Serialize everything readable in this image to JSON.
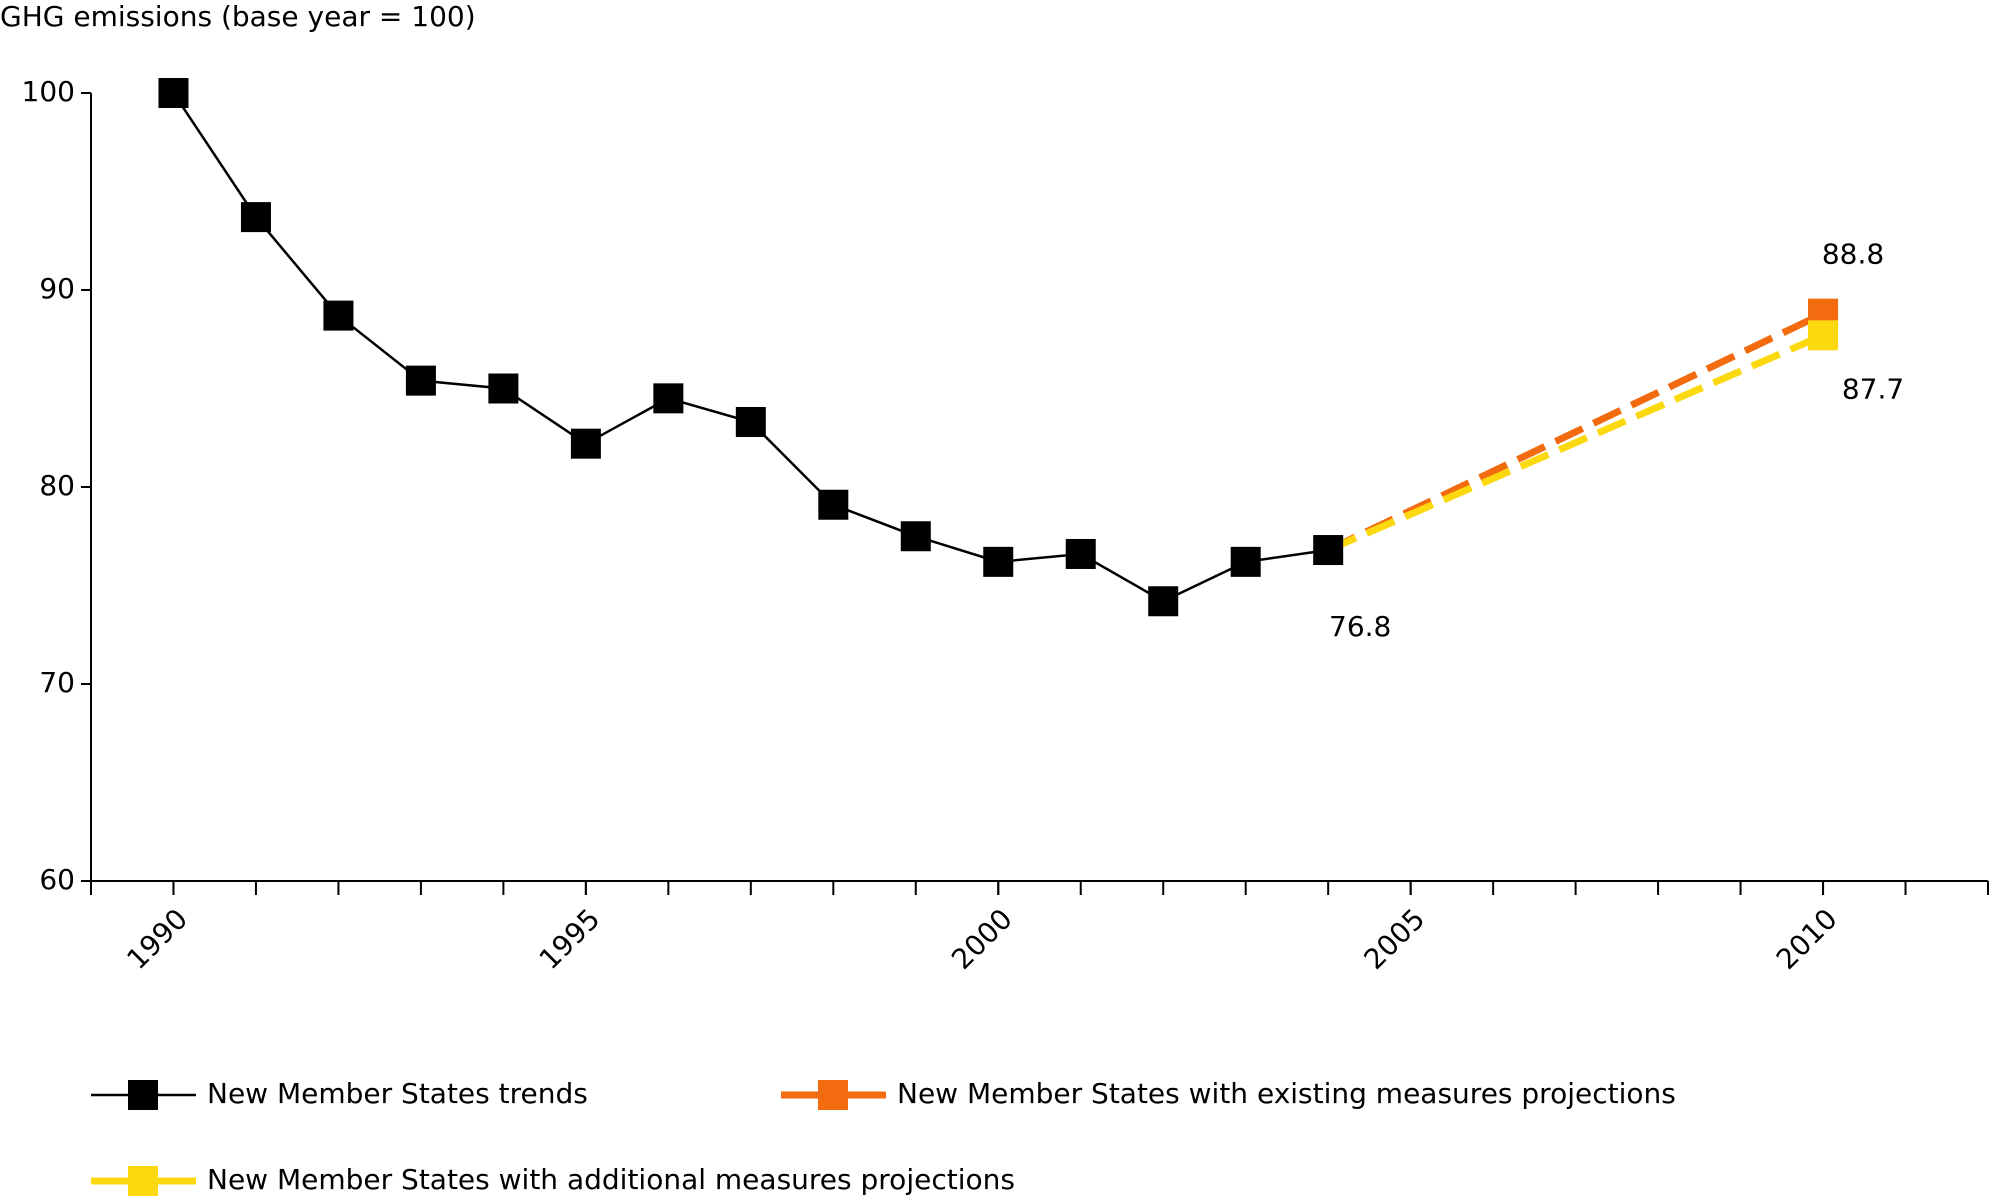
{
  "chart_data": {
    "type": "line",
    "ylabel": "GHG emissions (base year = 100)",
    "xlim": [
      1989,
      2012
    ],
    "xticks": [
      1990,
      1995,
      2000,
      2005,
      2010
    ],
    "ylim": [
      60,
      100
    ],
    "yticks": [
      60,
      70,
      80,
      90,
      100
    ],
    "series": [
      {
        "name": "New Member States trends",
        "color": "#000000",
        "dashed": false,
        "x": [
          1990,
          1991,
          1992,
          1993,
          1994,
          1995,
          1996,
          1997,
          1998,
          1999,
          2000,
          2001,
          2002,
          2003,
          2004
        ],
        "values": [
          100,
          93.7,
          88.7,
          85.4,
          85.0,
          82.2,
          84.5,
          83.3,
          79.1,
          77.5,
          76.2,
          76.6,
          74.2,
          76.2,
          76.8
        ]
      },
      {
        "name": "New Member States with existing measures projections",
        "color": "#f26b0f",
        "dashed": true,
        "x": [
          2004,
          2010
        ],
        "values": [
          76.8,
          88.8
        ]
      },
      {
        "name": "New Member States with additional measures projections",
        "color": "#fcd80f",
        "dashed": true,
        "x": [
          2004,
          2010
        ],
        "values": [
          76.8,
          87.7
        ]
      }
    ]
  }
}
